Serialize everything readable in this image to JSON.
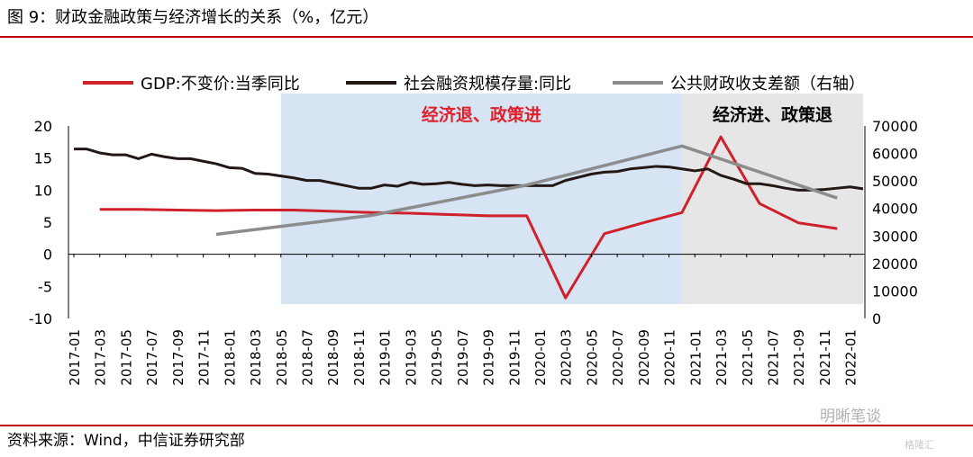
{
  "header": {
    "title": "图 9：财政金融政策与经济增长的关系（%，亿元）"
  },
  "footer": {
    "source": "资料来源：Wind，中信证券研究部"
  },
  "watermark": {
    "brand": "明晰笔谈",
    "logo_text": "格隆汇"
  },
  "chart_data": {
    "type": "line",
    "categories": [
      "2017-01",
      "2017-02",
      "2017-03",
      "2017-04",
      "2017-05",
      "2017-06",
      "2017-07",
      "2017-08",
      "2017-09",
      "2017-10",
      "2017-11",
      "2017-12",
      "2018-01",
      "2018-02",
      "2018-03",
      "2018-04",
      "2018-05",
      "2018-06",
      "2018-07",
      "2018-08",
      "2018-09",
      "2018-10",
      "2018-11",
      "2018-12",
      "2019-01",
      "2019-02",
      "2019-03",
      "2019-04",
      "2019-05",
      "2019-06",
      "2019-07",
      "2019-08",
      "2019-09",
      "2019-10",
      "2019-11",
      "2019-12",
      "2020-01",
      "2020-02",
      "2020-03",
      "2020-04",
      "2020-05",
      "2020-06",
      "2020-07",
      "2020-08",
      "2020-09",
      "2020-10",
      "2020-11",
      "2020-12",
      "2021-01",
      "2021-02",
      "2021-03",
      "2021-04",
      "2021-05",
      "2021-06",
      "2021-07",
      "2021-08",
      "2021-09",
      "2021-10",
      "2021-11",
      "2021-12",
      "2022-01",
      "2022-02"
    ],
    "x_tick_labels": [
      "2017-01",
      "2017-03",
      "2017-05",
      "2017-07",
      "2017-09",
      "2017-11",
      "2018-01",
      "2018-03",
      "2018-05",
      "2018-07",
      "2018-09",
      "2018-11",
      "2019-01",
      "2019-03",
      "2019-05",
      "2019-07",
      "2019-09",
      "2019-11",
      "2020-01",
      "2020-03",
      "2020-05",
      "2020-07",
      "2020-09",
      "2020-11",
      "2021-01",
      "2021-03",
      "2021-05",
      "2021-07",
      "2021-09",
      "2021-11",
      "2022-01"
    ],
    "y_left": {
      "ylim": [
        -10,
        20
      ],
      "ticks": [
        -10,
        -5,
        0,
        5,
        10,
        15,
        20
      ]
    },
    "y_right": {
      "ylim": [
        0,
        70000
      ],
      "ticks": [
        0,
        10000,
        20000,
        30000,
        40000,
        50000,
        60000,
        70000
      ]
    },
    "legend_position": "top",
    "series": [
      {
        "name": "GDP:不变价:当季同比",
        "axis": "left",
        "color": "#d0202a",
        "points": [
          [
            "2017-03",
            7.0
          ],
          [
            "2017-06",
            7.0
          ],
          [
            "2017-09",
            6.9
          ],
          [
            "2017-12",
            6.8
          ],
          [
            "2018-03",
            6.9
          ],
          [
            "2018-06",
            6.9
          ],
          [
            "2018-09",
            6.7
          ],
          [
            "2018-12",
            6.5
          ],
          [
            "2019-03",
            6.4
          ],
          [
            "2019-06",
            6.2
          ],
          [
            "2019-09",
            6.0
          ],
          [
            "2019-12",
            6.0
          ],
          [
            "2020-03",
            -6.8
          ],
          [
            "2020-06",
            3.2
          ],
          [
            "2020-09",
            4.9
          ],
          [
            "2020-12",
            6.5
          ],
          [
            "2021-03",
            18.3
          ],
          [
            "2021-06",
            7.9
          ],
          [
            "2021-09",
            4.9
          ],
          [
            "2021-12",
            4.0
          ]
        ]
      },
      {
        "name": "社会融资规模存量:同比",
        "axis": "left",
        "color": "#231815",
        "points": [
          [
            "2017-01",
            16.4
          ],
          [
            "2017-02",
            16.4
          ],
          [
            "2017-03",
            15.8
          ],
          [
            "2017-04",
            15.5
          ],
          [
            "2017-05",
            15.5
          ],
          [
            "2017-06",
            14.9
          ],
          [
            "2017-07",
            15.6
          ],
          [
            "2017-08",
            15.2
          ],
          [
            "2017-09",
            14.9
          ],
          [
            "2017-10",
            14.9
          ],
          [
            "2017-11",
            14.5
          ],
          [
            "2017-12",
            14.1
          ],
          [
            "2018-01",
            13.5
          ],
          [
            "2018-02",
            13.4
          ],
          [
            "2018-03",
            12.6
          ],
          [
            "2018-04",
            12.5
          ],
          [
            "2018-05",
            12.2
          ],
          [
            "2018-06",
            11.9
          ],
          [
            "2018-07",
            11.5
          ],
          [
            "2018-08",
            11.5
          ],
          [
            "2018-09",
            11.1
          ],
          [
            "2018-10",
            10.7
          ],
          [
            "2018-11",
            10.3
          ],
          [
            "2018-12",
            10.3
          ],
          [
            "2019-01",
            10.8
          ],
          [
            "2019-02",
            10.6
          ],
          [
            "2019-03",
            11.2
          ],
          [
            "2019-04",
            10.9
          ],
          [
            "2019-05",
            11.0
          ],
          [
            "2019-06",
            11.2
          ],
          [
            "2019-07",
            10.9
          ],
          [
            "2019-08",
            10.7
          ],
          [
            "2019-09",
            10.8
          ],
          [
            "2019-10",
            10.7
          ],
          [
            "2019-11",
            10.7
          ],
          [
            "2019-12",
            10.7
          ],
          [
            "2020-01",
            10.7
          ],
          [
            "2020-02",
            10.7
          ],
          [
            "2020-03",
            11.5
          ],
          [
            "2020-04",
            12.0
          ],
          [
            "2020-05",
            12.5
          ],
          [
            "2020-06",
            12.8
          ],
          [
            "2020-07",
            12.9
          ],
          [
            "2020-08",
            13.3
          ],
          [
            "2020-09",
            13.5
          ],
          [
            "2020-10",
            13.7
          ],
          [
            "2020-11",
            13.6
          ],
          [
            "2020-12",
            13.3
          ],
          [
            "2021-01",
            13.0
          ],
          [
            "2021-02",
            13.3
          ],
          [
            "2021-03",
            12.3
          ],
          [
            "2021-04",
            11.7
          ],
          [
            "2021-05",
            11.0
          ],
          [
            "2021-06",
            11.0
          ],
          [
            "2021-07",
            10.7
          ],
          [
            "2021-08",
            10.3
          ],
          [
            "2021-09",
            10.0
          ],
          [
            "2021-10",
            10.0
          ],
          [
            "2021-11",
            10.1
          ],
          [
            "2021-12",
            10.3
          ],
          [
            "2022-01",
            10.5
          ],
          [
            "2022-02",
            10.2
          ]
        ]
      },
      {
        "name": "公共财政收支差额（右轴）",
        "axis": "right",
        "color": "#8c8c8c",
        "points": [
          [
            "2017-12",
            30600
          ],
          [
            "2018-12",
            37500
          ],
          [
            "2019-12",
            48500
          ],
          [
            "2020-12",
            62700
          ],
          [
            "2021-12",
            43800
          ]
        ]
      }
    ],
    "shaded_regions": [
      {
        "label": "经济退、政策进",
        "from": "2018-05",
        "to": "2020-12",
        "color": "#d6e4f3",
        "label_color": "#e0202a"
      },
      {
        "label": "经济进、政策退",
        "from": "2020-12",
        "to": "2022-02",
        "color": "#e6e6e6",
        "label_color": "#000000"
      }
    ]
  }
}
